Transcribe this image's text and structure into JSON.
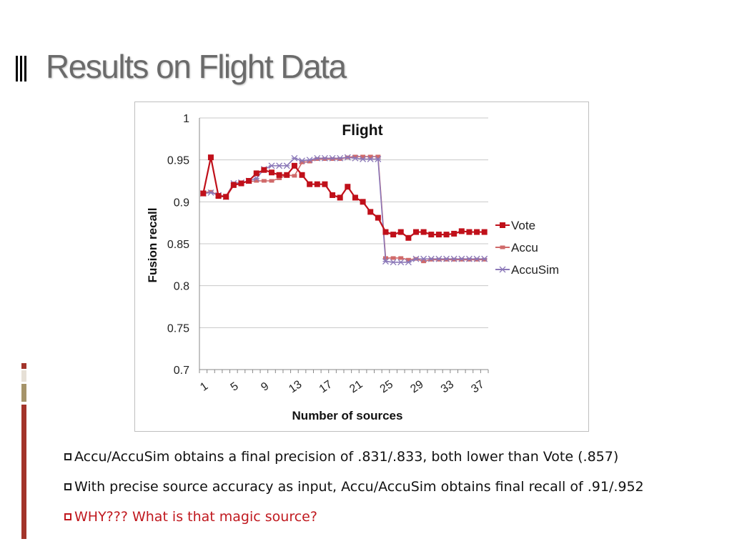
{
  "slide": {
    "title": "Results on Flight Data"
  },
  "bullets": [
    {
      "text": "Accu/AccuSim obtains a final precision of .831/.833, both lower than Vote (.857)",
      "color": "#111111"
    },
    {
      "text": "With precise source accuracy as input, Accu/AccuSim obtains final recall of .91/.952",
      "color": "#111111"
    },
    {
      "text": "WHY??? What is that magic source?",
      "color": "#c0191f"
    }
  ],
  "sidebar_colors": [
    "#a3342a",
    "#e6e0d6",
    "#a6946a",
    "#a3342a"
  ],
  "chart_data": {
    "type": "line",
    "title": "Flight",
    "xlabel": "Number of sources",
    "ylabel": "Fusion recall",
    "x": [
      1,
      2,
      3,
      4,
      5,
      6,
      7,
      8,
      9,
      10,
      11,
      12,
      13,
      14,
      15,
      16,
      17,
      18,
      19,
      20,
      21,
      22,
      23,
      24,
      25,
      26,
      27,
      28,
      29,
      30,
      31,
      32,
      33,
      34,
      35,
      36,
      37,
      38
    ],
    "xticks": [
      "1",
      "5",
      "9",
      "13",
      "17",
      "21",
      "25",
      "29",
      "33",
      "37"
    ],
    "xtick_values": [
      1,
      5,
      9,
      13,
      17,
      21,
      25,
      29,
      33,
      37
    ],
    "ylim": [
      0.7,
      1.0
    ],
    "yticks": [
      "0.7",
      "0.75",
      "0.8",
      "0.85",
      "0.9",
      "0.95",
      "1"
    ],
    "ytick_values": [
      0.7,
      0.75,
      0.8,
      0.85,
      0.9,
      0.95,
      1.0
    ],
    "grid": true,
    "legend_position": "right",
    "series": [
      {
        "name": "Vote",
        "color": "#c0101a",
        "marker": "square",
        "values": [
          0.91,
          0.953,
          0.907,
          0.906,
          0.92,
          0.922,
          0.925,
          0.934,
          0.938,
          0.935,
          0.932,
          0.932,
          0.943,
          0.932,
          0.921,
          0.921,
          0.921,
          0.908,
          0.905,
          0.918,
          0.905,
          0.9,
          0.888,
          0.881,
          0.864,
          0.861,
          0.864,
          0.857,
          0.864,
          0.864,
          0.861,
          0.861,
          0.861,
          0.862,
          0.865,
          0.864,
          0.864,
          0.864
        ]
      },
      {
        "name": "Accu",
        "color": "#d06a6a",
        "marker": "dash",
        "values": [
          0.911,
          0.912,
          0.908,
          0.907,
          0.922,
          0.923,
          0.924,
          0.925,
          0.925,
          0.925,
          0.928,
          0.932,
          0.931,
          0.947,
          0.948,
          0.951,
          0.951,
          0.951,
          0.951,
          0.953,
          0.954,
          0.954,
          0.954,
          0.954,
          0.833,
          0.833,
          0.833,
          0.831,
          0.832,
          0.829,
          0.831,
          0.831,
          0.831,
          0.831,
          0.831,
          0.831,
          0.831,
          0.831
        ]
      },
      {
        "name": "AccuSim",
        "color": "#8b78b8",
        "marker": "x",
        "values": [
          0.91,
          0.911,
          0.908,
          0.906,
          0.922,
          0.923,
          0.925,
          0.928,
          0.939,
          0.943,
          0.943,
          0.943,
          0.952,
          0.949,
          0.95,
          0.952,
          0.952,
          0.952,
          0.952,
          0.953,
          0.952,
          0.951,
          0.951,
          0.951,
          0.829,
          0.828,
          0.828,
          0.828,
          0.832,
          0.832,
          0.832,
          0.832,
          0.832,
          0.832,
          0.832,
          0.832,
          0.832,
          0.832
        ]
      }
    ]
  }
}
